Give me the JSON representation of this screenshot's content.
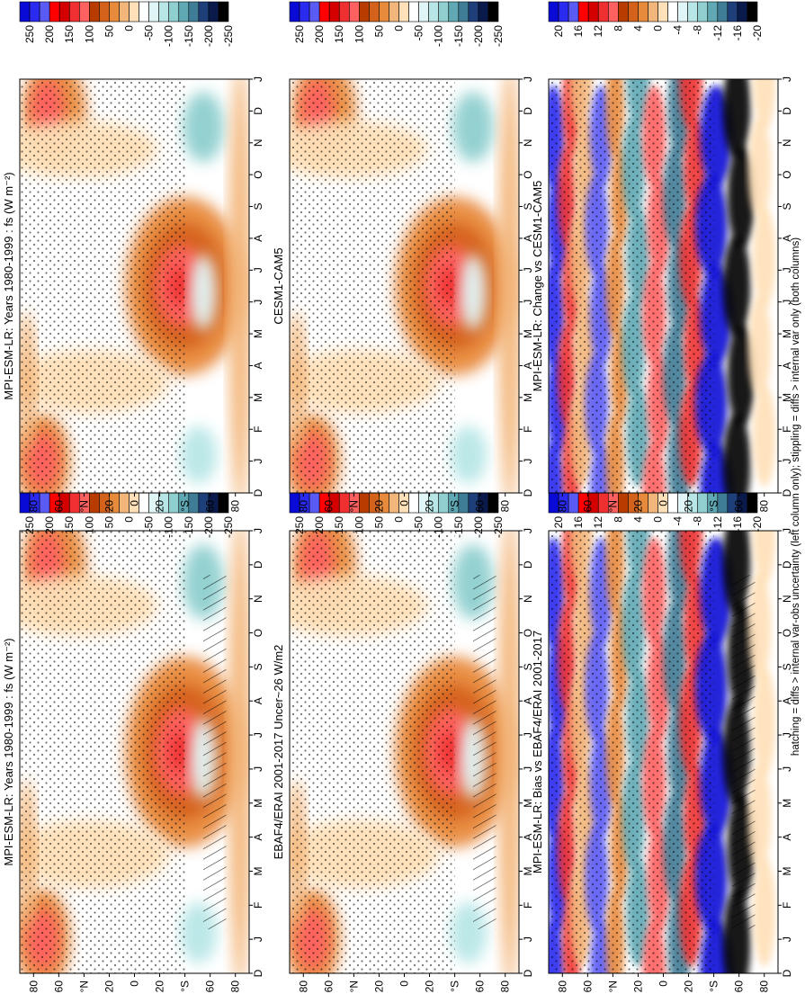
{
  "footnote": "hatching = diffs > internal var-obs uncertainty (left column only); stippling = diffs > internal var only (both columns)",
  "chart_data": [
    {
      "type": "heatmap",
      "title": "MPI-ESM-LR: Years 1980-1999 : fs (W m⁻²)",
      "field": "seasonal",
      "lat_ticks": [
        "80",
        "60",
        "°N",
        "20",
        "0",
        "20",
        "°S",
        "60",
        "80"
      ],
      "month_ticks": [
        "D",
        "J",
        "F",
        "M",
        "A",
        "M",
        "J",
        "J",
        "A",
        "S",
        "O",
        "N",
        "D",
        "J"
      ],
      "colorbar": [
        "250",
        "200",
        "150",
        "100",
        "50",
        "0",
        "-50",
        "-100",
        "-150",
        "-200",
        "-250"
      ],
      "stippling": true,
      "hatching": true
    },
    {
      "type": "heatmap",
      "title": "MPI-ESM-LR: Years 1980-1999 : fs (W m⁻²)",
      "field": "seasonal",
      "lat_ticks": [
        "80",
        "60",
        "°N",
        "20",
        "0",
        "20",
        "°S",
        "60",
        "80"
      ],
      "month_ticks": [
        "D",
        "J",
        "F",
        "M",
        "A",
        "M",
        "J",
        "J",
        "A",
        "S",
        "O",
        "N",
        "D",
        "J"
      ],
      "colorbar": [
        "250",
        "200",
        "150",
        "100",
        "50",
        "0",
        "-50",
        "-100",
        "-150",
        "-200",
        "-250"
      ],
      "stippling": true,
      "hatching": false
    },
    {
      "type": "heatmap",
      "title": "EBAF4/ERAI 2001-2017 Uncer~26 W/m2",
      "field": "seasonal",
      "lat_ticks": [
        "80",
        "60",
        "°N",
        "20",
        "0",
        "20",
        "°S",
        "60",
        "80"
      ],
      "month_ticks": [
        "D",
        "J",
        "F",
        "M",
        "A",
        "M",
        "J",
        "J",
        "A",
        "S",
        "O",
        "N",
        "D",
        "J"
      ],
      "colorbar": [
        "250",
        "200",
        "150",
        "100",
        "50",
        "0",
        "-50",
        "-100",
        "-150",
        "-200",
        "-250"
      ],
      "stippling": true,
      "hatching": true
    },
    {
      "type": "heatmap",
      "title": "CESM1-CAM5",
      "field": "seasonal",
      "lat_ticks": [
        "80",
        "60",
        "°N",
        "20",
        "0",
        "20",
        "°S",
        "60",
        "80"
      ],
      "month_ticks": [
        "D",
        "J",
        "F",
        "M",
        "A",
        "M",
        "J",
        "J",
        "A",
        "S",
        "O",
        "N",
        "D",
        "J"
      ],
      "colorbar": [
        "250",
        "200",
        "150",
        "100",
        "50",
        "0",
        "-50",
        "-100",
        "-150",
        "-200",
        "-250"
      ],
      "stippling": true,
      "hatching": false
    },
    {
      "type": "heatmap",
      "title": "MPI-ESM-LR: Bias vs EBAF4/ERAI 2001-2017",
      "field": "diff",
      "lat_ticks": [
        "80",
        "60",
        "°N",
        "20",
        "0",
        "20",
        "°S",
        "60",
        "80"
      ],
      "month_ticks": [
        "D",
        "J",
        "F",
        "M",
        "A",
        "M",
        "J",
        "J",
        "A",
        "S",
        "O",
        "N",
        "D",
        "J"
      ],
      "colorbar": [
        "20",
        "16",
        "12",
        "8",
        "4",
        "0",
        "-4",
        "-8",
        "-12",
        "-16",
        "-20"
      ],
      "stippling": true,
      "hatching": true
    },
    {
      "type": "heatmap",
      "title": "MPI-ESM-LR: Change vs CESM1-CAM5",
      "field": "diff",
      "lat_ticks": [
        "80",
        "60",
        "°N",
        "20",
        "0",
        "20",
        "°S",
        "60",
        "80"
      ],
      "month_ticks": [
        "D",
        "J",
        "F",
        "M",
        "A",
        "M",
        "J",
        "J",
        "A",
        "S",
        "O",
        "N",
        "D",
        "J"
      ],
      "colorbar": [
        "20",
        "16",
        "12",
        "8",
        "4",
        "0",
        "-4",
        "-8",
        "-12",
        "-16",
        "-20"
      ],
      "stippling": true,
      "hatching": false
    }
  ],
  "palette": [
    "#0a0ad6",
    "#2a2af0",
    "#5a5af5",
    "#ff0000",
    "#d40000",
    "#f03030",
    "#ff6060",
    "#b83c00",
    "#d4621a",
    "#e88a3c",
    "#f3b67a",
    "#ffe0b8",
    "#ffffff",
    "#e0f5f5",
    "#b8e6e6",
    "#8fcfcf",
    "#5fa8b4",
    "#3f7c96",
    "#1f3f7a",
    "#0a1a4a",
    "#000000"
  ]
}
